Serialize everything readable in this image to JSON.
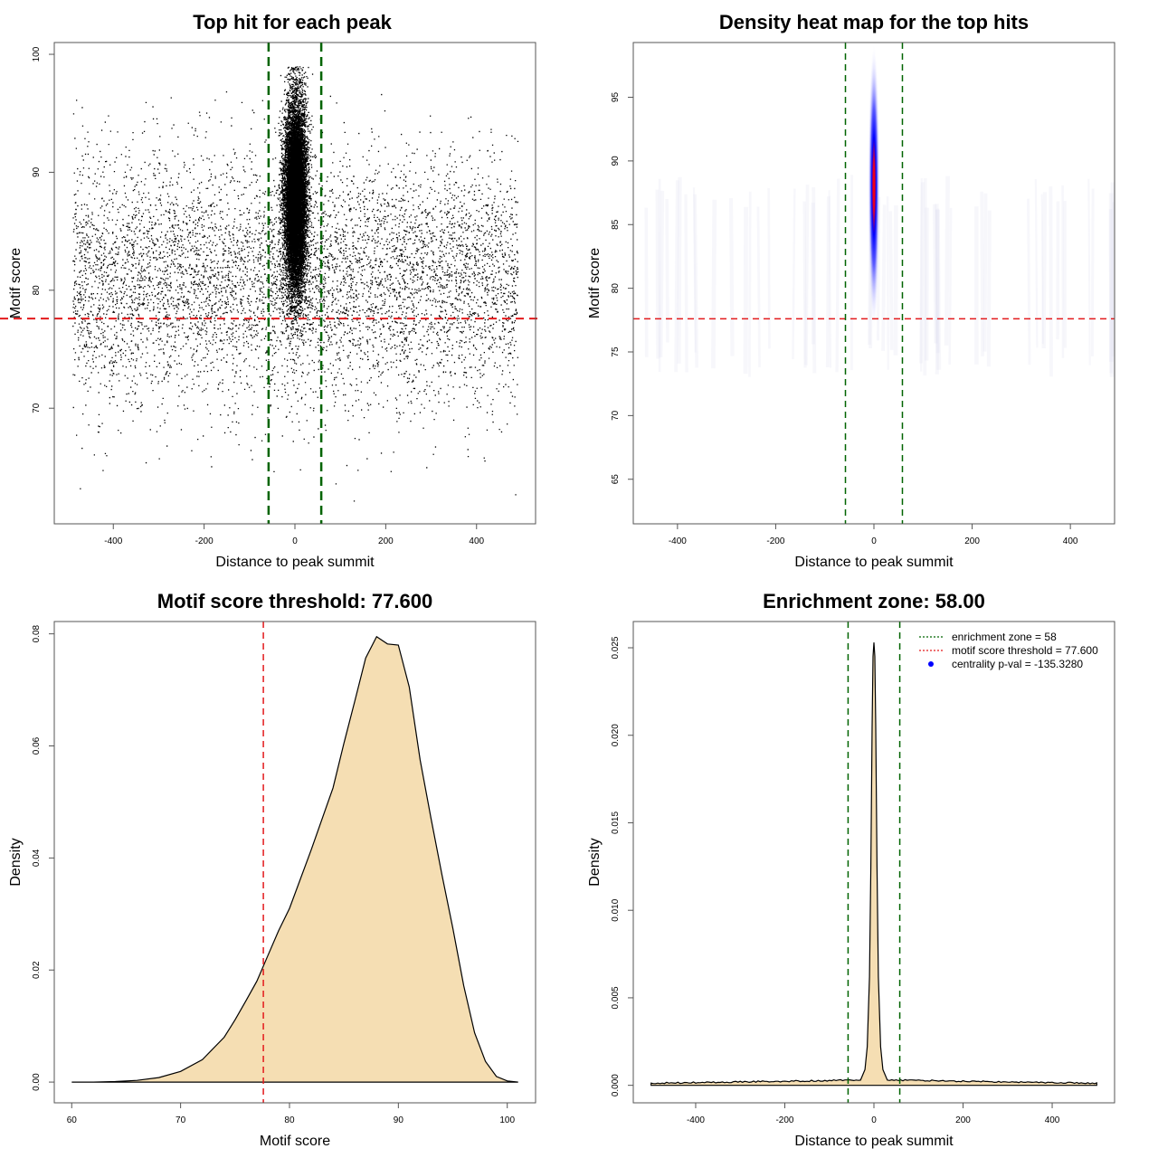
{
  "chart_data": [
    {
      "id": "scatter",
      "type": "scatter",
      "title": "Top hit for each peak",
      "xlabel": "Distance to peak summit",
      "ylabel": "Motif score",
      "xlim": [
        -530,
        530
      ],
      "ylim": [
        60.2,
        101.0
      ],
      "xticks": [
        -400,
        -200,
        0,
        200,
        400
      ],
      "xtick_labels": [
        "-400",
        "-200",
        "0",
        "200",
        "400"
      ],
      "yticks": [
        70,
        80,
        90,
        100
      ],
      "ytick_labels": [
        "70",
        "80",
        "90",
        "100"
      ],
      "threshold_y": 77.6,
      "zone_x": [
        -58,
        58
      ],
      "distribution": {
        "central_cluster": {
          "x_center": 0,
          "x_sd": 12,
          "y_range": [
            72,
            99
          ],
          "y_peak": 88
        },
        "background": {
          "x_range": [
            -490,
            490
          ],
          "y_range": [
            62,
            97
          ],
          "y_peak": 81
        }
      },
      "colors": {
        "points": "#000000",
        "threshold": "#e31a1c",
        "zone": "#006400"
      }
    },
    {
      "id": "heatmap",
      "type": "heatmap",
      "title": "Density heat map for the top hits",
      "xlabel": "Distance to peak summit",
      "ylabel": "Motif score",
      "xlim": [
        -490,
        490
      ],
      "ylim": [
        61.5,
        99.3
      ],
      "xticks": [
        -400,
        -200,
        0,
        200,
        400
      ],
      "xtick_labels": [
        "-400",
        "-200",
        "0",
        "200",
        "400"
      ],
      "yticks": [
        65,
        70,
        75,
        80,
        85,
        90,
        95
      ],
      "ytick_labels": [
        "65",
        "70",
        "75",
        "80",
        "85",
        "90",
        "95"
      ],
      "threshold_y": 77.6,
      "zone_x": [
        -58,
        58
      ],
      "hotspot": {
        "x": 0,
        "y": 88.0,
        "x_sd": 10,
        "y_sd": 4.5
      },
      "colors": {
        "low": "#ffffff",
        "mid": "#0000ff",
        "high": "#ff0000",
        "threshold": "#e31a1c",
        "zone": "#006400"
      }
    },
    {
      "id": "score-density",
      "type": "area",
      "title": "Motif score threshold: 77.600",
      "xlabel": "Motif score",
      "ylabel": "Density",
      "xlim": [
        58.4,
        102.6
      ],
      "ylim": [
        -0.0037,
        0.0822
      ],
      "xticks": [
        60,
        70,
        80,
        90,
        100
      ],
      "xtick_labels": [
        "60",
        "70",
        "80",
        "90",
        "100"
      ],
      "yticks": [
        0,
        0.02,
        0.04,
        0.06,
        0.08
      ],
      "ytick_labels": [
        "0.00",
        "0.02",
        "0.04",
        "0.06",
        "0.08"
      ],
      "threshold_x": 77.6,
      "x": [
        60,
        62,
        64,
        66,
        68,
        70,
        72,
        74,
        75,
        76,
        77,
        78,
        79,
        80,
        82,
        84,
        85,
        86,
        87,
        88,
        89,
        90,
        91,
        92,
        93,
        94,
        95,
        96,
        97,
        98,
        99,
        100,
        101
      ],
      "y": [
        0.0,
        0.0,
        0.0001,
        0.0003,
        0.0008,
        0.0019,
        0.004,
        0.008,
        0.0111,
        0.0145,
        0.018,
        0.0225,
        0.027,
        0.031,
        0.0415,
        0.0525,
        0.0605,
        0.068,
        0.0757,
        0.0795,
        0.0782,
        0.078,
        0.0705,
        0.0575,
        0.047,
        0.037,
        0.0275,
        0.0172,
        0.0088,
        0.0037,
        0.001,
        0.0002,
        0.0
      ],
      "colors": {
        "fill": "#f5deb3",
        "line": "#000000",
        "threshold": "#e31a1c"
      }
    },
    {
      "id": "distance-density",
      "type": "area",
      "title": "Enrichment zone: 58.00",
      "xlabel": "Distance to peak summit",
      "ylabel": "Density",
      "xlim": [
        -540,
        540
      ],
      "ylim": [
        -0.001,
        0.0265
      ],
      "xticks": [
        -400,
        -200,
        0,
        200,
        400
      ],
      "xtick_labels": [
        "-400",
        "-200",
        "0",
        "200",
        "400"
      ],
      "yticks": [
        0,
        0.005,
        0.01,
        0.015,
        0.02,
        0.025
      ],
      "ytick_labels": [
        "0.000",
        "0.005",
        "0.010",
        "0.015",
        "0.020",
        "0.025"
      ],
      "zone_x": [
        -58,
        58
      ],
      "x": [
        -500,
        -30,
        -20,
        -15,
        -10,
        -7,
        -4,
        -2,
        0,
        2,
        4,
        7,
        10,
        15,
        20,
        30,
        500
      ],
      "y": [
        0.00012,
        0.0003,
        0.0009,
        0.0022,
        0.0062,
        0.0125,
        0.0205,
        0.0245,
        0.0253,
        0.0245,
        0.0205,
        0.0125,
        0.0062,
        0.0022,
        0.0009,
        0.0003,
        0.00012
      ],
      "legend": {
        "position": "top-right",
        "entries": [
          {
            "label": "enrichment zone = 58",
            "style": "dotted-line",
            "color": "#006400"
          },
          {
            "label": "motif score threshold = 77.600",
            "style": "dotted-line",
            "color": "#e31a1c"
          },
          {
            "label": "centrality p-val = -135.3280",
            "style": "point",
            "color": "#0000ff"
          }
        ]
      },
      "colors": {
        "fill": "#f5deb3",
        "line": "#000000",
        "zone": "#006400"
      }
    }
  ]
}
